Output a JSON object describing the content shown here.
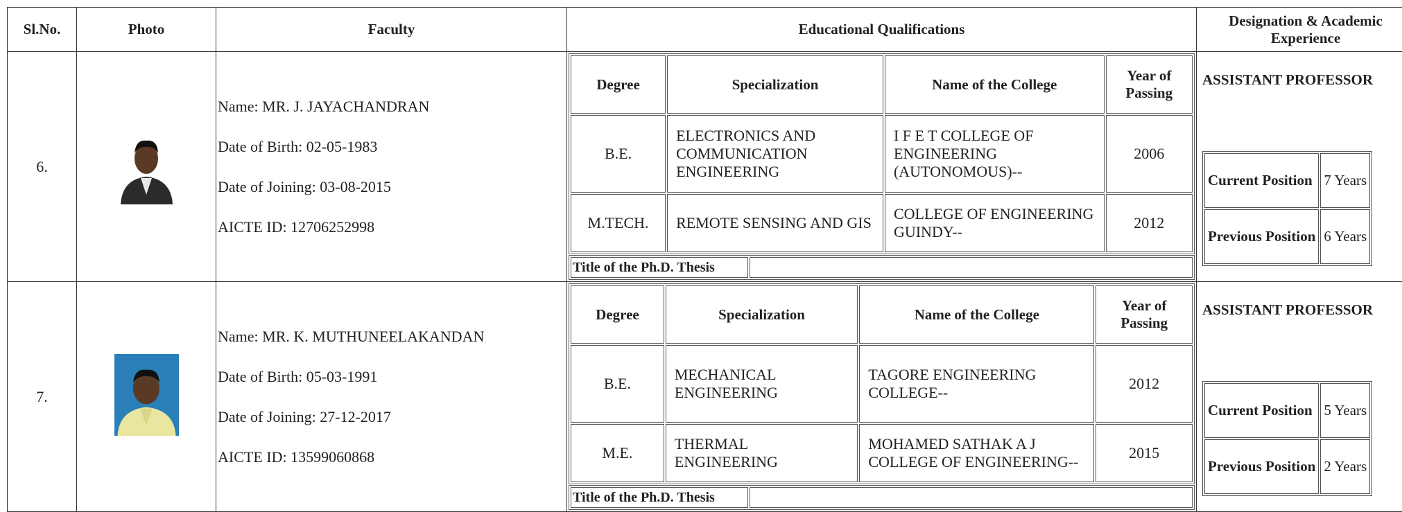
{
  "header": [
    "Sl.No.",
    "Photo",
    "Faculty",
    "Educational Qualifications",
    "Designation & Academic Experience"
  ],
  "rows": [
    {
      "sl": "6.",
      "faculty": [
        "Name: MR. J. JAYACHANDRAN",
        "Date of Birth: 02-05-1983",
        "Date of Joining: 03-08-2015",
        "AICTE ID: 12706252998"
      ],
      "qualifications": {
        "header": [
          "Degree",
          "Specialization",
          "Name of the College",
          "Year of Passing"
        ],
        "rows": [
          [
            "B.E.",
            "ELECTRONICS AND COMMUNICATION ENGINEERING",
            "I F E T COLLEGE OF ENGINEERING (AUTONOMOUS)--",
            "2006"
          ],
          [
            "M.TECH.",
            "REMOTE SENSING AND GIS",
            "COLLEGE OF ENGINEERING GUINDY--",
            "2012"
          ]
        ]
      },
      "thesis_label": "Title of the Ph.D. Thesis",
      "designation": "ASSISTANT PROFESSOR",
      "experience": [
        [
          "Current Position",
          "7 Years"
        ],
        [
          "Previous Position",
          "6 Years"
        ]
      ]
    },
    {
      "sl": "7.",
      "faculty": [
        "Name: MR. K. MUTHUNEELAKANDAN",
        "Date of Birth: 05-03-1991",
        "Date of Joining: 27-12-2017",
        "AICTE ID: 13599060868"
      ],
      "qualifications": {
        "header": [
          "Degree",
          "Specialization",
          "Name of the College",
          "Year of Passing"
        ],
        "rows": [
          [
            "B.E.",
            "MECHANICAL ENGINEERING",
            "TAGORE ENGINEERING COLLEGE--",
            "2012"
          ],
          [
            "M.E.",
            "THERMAL ENGINEERING",
            "MOHAMED SATHAK A J COLLEGE OF ENGINEERING--",
            "2015"
          ]
        ]
      },
      "thesis_label": "Title of the Ph.D. Thesis",
      "designation": "ASSISTANT PROFESSOR",
      "experience": [
        [
          "Current Position",
          "5 Years"
        ],
        [
          "Previous Position",
          "2 Years"
        ]
      ]
    }
  ]
}
